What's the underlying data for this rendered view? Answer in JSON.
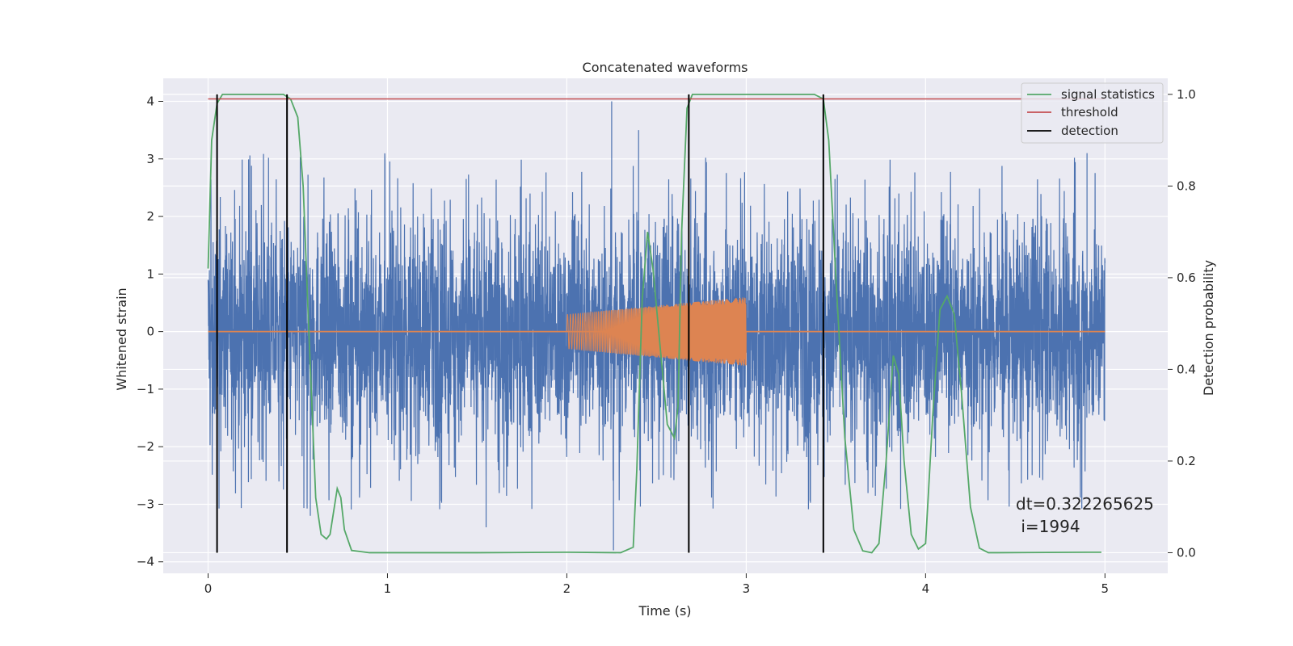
{
  "chart_data": {
    "type": "line",
    "title": "Concatenated waveforms",
    "xlabel": "Time (s)",
    "ylabel_left": "Whitened strain",
    "ylabel_right": "Detection probability",
    "xlim": [
      -0.25,
      5.35
    ],
    "ylim_left": [
      -4.2,
      4.4
    ],
    "ylim_right": [
      -0.045,
      1.035
    ],
    "x_ticks": [
      0,
      1,
      2,
      3,
      4,
      5
    ],
    "x_tick_labels": [
      "0",
      "1",
      "2",
      "3",
      "4",
      "5"
    ],
    "y_left_ticks": [
      -4,
      -3,
      -2,
      -1,
      0,
      1,
      2,
      3,
      4
    ],
    "y_left_tick_labels": [
      "−4",
      "−3",
      "−2",
      "−1",
      "0",
      "1",
      "2",
      "3",
      "4"
    ],
    "y_right_ticks": [
      0.0,
      0.2,
      0.4,
      0.6,
      0.8,
      1.0
    ],
    "y_right_tick_labels": [
      "0.0",
      "0.2",
      "0.4",
      "0.6",
      "0.8",
      "1.0"
    ],
    "grid": true,
    "legend_position": "top-right",
    "legend": [
      {
        "label": "signal statistics",
        "color": "#55a868"
      },
      {
        "label": "threshold",
        "color": "#c44e52"
      },
      {
        "label": "detection",
        "color": "#000000"
      }
    ],
    "series": [
      {
        "kind": "noise",
        "axis": "left",
        "color": "#4c72b0",
        "x_range": [
          0,
          5
        ],
        "typical_range": [
          -1.2,
          1.4
        ],
        "peak_min": -3.8,
        "peak_max": 4.0
      },
      {
        "kind": "injected_waveform",
        "axis": "left",
        "color": "#dd8452",
        "x_range": [
          2.0,
          3.0
        ],
        "amplitude_start": 0.3,
        "amplitude_end": 0.6,
        "baseline": 0
      },
      {
        "name": "signal statistics",
        "axis": "right",
        "color": "#55a868",
        "x": [
          0.0,
          0.02,
          0.05,
          0.08,
          0.12,
          0.3,
          0.42,
          0.46,
          0.5,
          0.53,
          0.56,
          0.6,
          0.63,
          0.66,
          0.68,
          0.7,
          0.72,
          0.74,
          0.76,
          0.8,
          0.9,
          1.5,
          2.0,
          2.3,
          2.37,
          2.39,
          2.42,
          2.45,
          2.48,
          2.52,
          2.56,
          2.6,
          2.62,
          2.64,
          2.67,
          2.7,
          2.75,
          3.0,
          3.38,
          3.43,
          3.46,
          3.5,
          3.55,
          3.6,
          3.65,
          3.7,
          3.74,
          3.78,
          3.82,
          3.85,
          3.88,
          3.92,
          3.96,
          4.0,
          4.04,
          4.08,
          4.12,
          4.16,
          4.2,
          4.25,
          4.3,
          4.35,
          4.4,
          4.9,
          4.98
        ],
        "y": [
          0.62,
          0.9,
          0.98,
          1.0,
          1.0,
          1.0,
          1.0,
          0.99,
          0.95,
          0.8,
          0.5,
          0.12,
          0.04,
          0.03,
          0.04,
          0.09,
          0.14,
          0.12,
          0.05,
          0.005,
          0.0,
          0.0,
          0.001,
          0.0,
          0.012,
          0.18,
          0.55,
          0.7,
          0.62,
          0.45,
          0.28,
          0.25,
          0.32,
          0.7,
          0.97,
          1.0,
          1.0,
          1.0,
          1.0,
          0.99,
          0.9,
          0.6,
          0.25,
          0.05,
          0.004,
          0.0,
          0.02,
          0.2,
          0.43,
          0.39,
          0.2,
          0.04,
          0.008,
          0.02,
          0.3,
          0.53,
          0.56,
          0.52,
          0.35,
          0.1,
          0.01,
          0.0,
          0.0,
          0.001,
          0.001
        ]
      },
      {
        "name": "threshold",
        "axis": "right",
        "color": "#c44e52",
        "x": [
          0,
          5
        ],
        "y": [
          0.99,
          0.99
        ]
      },
      {
        "name": "detection",
        "axis": "right",
        "color": "#000000",
        "x_positions": [
          0.05,
          0.44,
          2.68,
          3.43
        ],
        "y_range": [
          0,
          1
        ]
      }
    ],
    "annotation": {
      "lines": [
        "dt=0.322265625",
        " i=1994"
      ],
      "x": 4.5,
      "y": -3.0
    }
  }
}
